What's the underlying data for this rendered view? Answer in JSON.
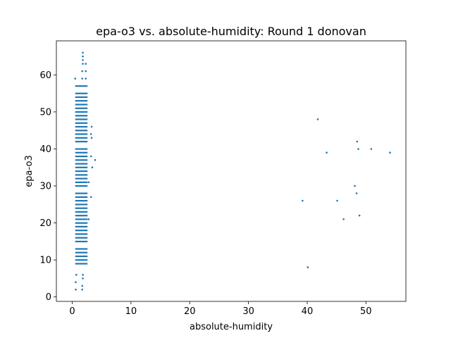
{
  "chart_data": {
    "type": "scatter",
    "title": "epa-o3 vs. absolute-humidity: Round 1 donovan",
    "xlabel": "absolute-humidity",
    "ylabel": "epa-o3",
    "xlim": [
      -2.7,
      56.8
    ],
    "ylim": [
      -1.2,
      69.2
    ],
    "xticks": [
      0,
      10,
      20,
      30,
      40,
      50
    ],
    "yticks": [
      0,
      10,
      20,
      30,
      40,
      50,
      60
    ],
    "grid": false,
    "legend": "none",
    "marker_color": "#1f77b4",
    "series": [
      {
        "name": "",
        "points": [
          [
            0.6,
            2
          ],
          [
            0.6,
            4
          ],
          [
            0.7,
            6
          ],
          [
            1.7,
            2
          ],
          [
            1.7,
            3
          ],
          [
            1.8,
            5
          ],
          [
            1.8,
            6
          ],
          [
            0.5,
            59
          ],
          [
            1.7,
            59
          ],
          [
            1.7,
            61
          ],
          [
            1.8,
            63
          ],
          [
            1.8,
            64
          ],
          [
            1.8,
            65
          ],
          [
            1.8,
            66
          ],
          [
            2.3,
            59
          ],
          [
            2.3,
            61
          ],
          [
            2.3,
            63
          ],
          [
            3.3,
            46
          ],
          [
            3.2,
            44
          ],
          [
            3.3,
            43
          ],
          [
            3.2,
            38
          ],
          [
            3.9,
            37
          ],
          [
            3.4,
            35
          ],
          [
            3.2,
            27
          ],
          [
            2.8,
            31
          ],
          [
            2.8,
            21
          ],
          [
            39.2,
            26
          ],
          [
            40.1,
            8
          ],
          [
            41.8,
            48
          ],
          [
            43.3,
            39
          ],
          [
            45.1,
            26
          ],
          [
            46.2,
            21
          ],
          [
            48.1,
            30
          ],
          [
            48.4,
            28
          ],
          [
            48.5,
            42
          ],
          [
            48.7,
            40
          ],
          [
            48.9,
            22
          ],
          [
            50.9,
            40
          ],
          [
            54.1,
            39
          ]
        ],
        "bands": [
          {
            "x_min": 0.5,
            "x_max": 2.6,
            "y_values": [
              9,
              10,
              11,
              12,
              13,
              15,
              16,
              17,
              18,
              19,
              20,
              21,
              22,
              23,
              24,
              25,
              26,
              27,
              28,
              30,
              31,
              32,
              33,
              34,
              35,
              36,
              37,
              38,
              39,
              40,
              42,
              43,
              44,
              45,
              46,
              47,
              48,
              49,
              50,
              51,
              52,
              53,
              54,
              55,
              57
            ]
          }
        ]
      }
    ]
  }
}
